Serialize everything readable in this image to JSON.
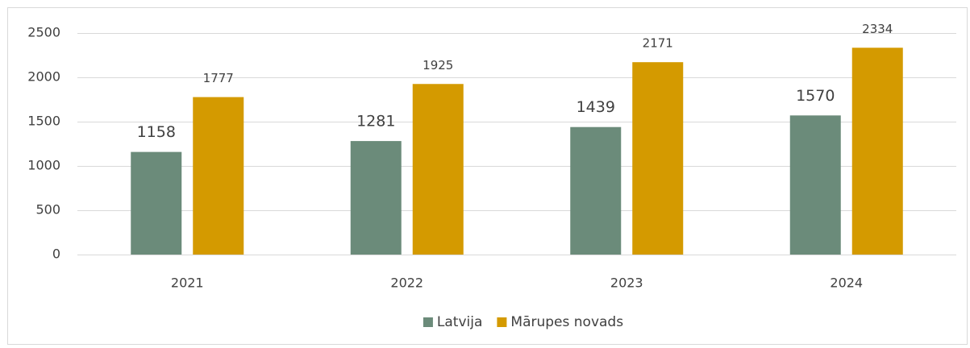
{
  "chart_data": {
    "type": "bar",
    "categories": [
      "2021",
      "2022",
      "2023",
      "2024"
    ],
    "series": [
      {
        "name": "Latvija",
        "color": "#6b8b7a",
        "values": [
          1158,
          1281,
          1439,
          1570
        ]
      },
      {
        "name": "Mārupes novads",
        "color": "#d49a00",
        "values": [
          1777,
          1925,
          2171,
          2334
        ]
      }
    ],
    "ylim": [
      0,
      2500
    ],
    "yticks": [
      0,
      500,
      1000,
      1500,
      2000,
      2500
    ],
    "grid": true,
    "legend": "bottom"
  }
}
